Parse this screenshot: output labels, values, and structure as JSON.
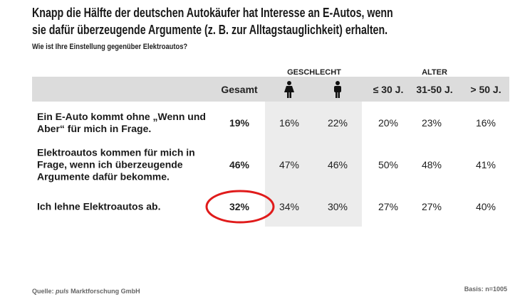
{
  "title": {
    "lines": [
      "Knapp die Hälfte der deutschen Autokäufer hat Interesse an E-Autos, wenn",
      "sie dafür überzeugende Argumente (z. B. zur Alltagstauglichkeit) erhalten."
    ]
  },
  "subtitle": "Wie ist Ihre Einstellung gegenüber Elektroautos?",
  "table": {
    "groups": [
      "GESCHLECHT",
      "ALTER"
    ],
    "total_label": "Gesamt",
    "age_columns": [
      "≤ 30 J.",
      "31-50 J.",
      "> 50 J."
    ],
    "rows": [
      {
        "label": "Ein E-Auto kommt ohne „Wenn und Aber“ für mich in Frage.",
        "values": [
          "19%",
          "16%",
          "22%",
          "20%",
          "23%",
          "16%"
        ]
      },
      {
        "label": "Elektroautos kommen für mich in Frage, wenn ich überzeugende Argumente dafür bekomme.",
        "values": [
          "46%",
          "47%",
          "46%",
          "50%",
          "48%",
          "41%"
        ]
      },
      {
        "label": "Ich lehne Elektroautos ab.",
        "values": [
          "32%",
          "34%",
          "30%",
          "27%",
          "27%",
          "40%"
        ]
      }
    ]
  },
  "footer": {
    "source_prefix": "Quelle:",
    "source_name": "puls",
    "source_rest": "Marktforschung GmbH",
    "basis": "Basis: n=1005"
  }
}
